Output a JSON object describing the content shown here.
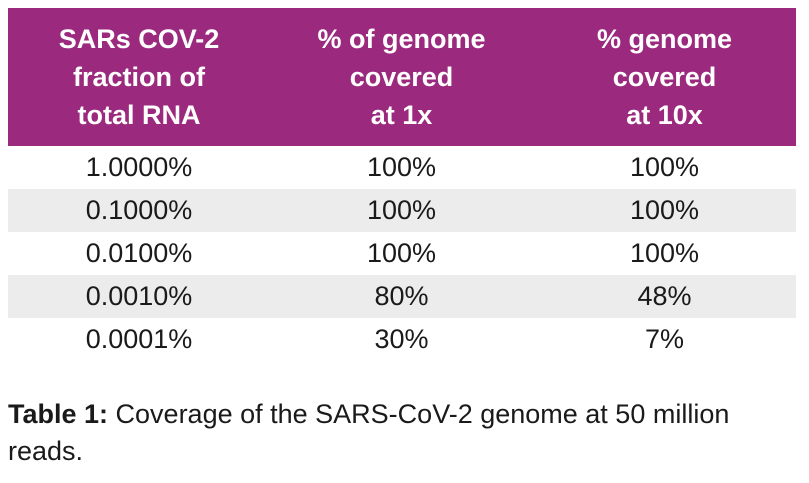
{
  "table": {
    "headers": [
      [
        "SARs COV-2",
        "fraction of",
        "total RNA"
      ],
      [
        "% of genome",
        "covered",
        "at 1x"
      ],
      [
        "% genome",
        "covered",
        "at 10x"
      ]
    ],
    "rows": [
      [
        "1.0000%",
        "100%",
        "100%"
      ],
      [
        "0.1000%",
        "100%",
        "100%"
      ],
      [
        "0.0100%",
        "100%",
        "100%"
      ],
      [
        "0.0010%",
        "80%",
        "48%"
      ],
      [
        "0.0001%",
        "30%",
        "7%"
      ]
    ]
  },
  "caption": {
    "label": "Table 1:",
    "text": " Coverage of the SARS-CoV-2 genome at 50 million reads."
  },
  "colors": {
    "header_bg": "#9b2a7e",
    "header_text": "#ffffff",
    "alt_row_bg": "#ececec"
  }
}
